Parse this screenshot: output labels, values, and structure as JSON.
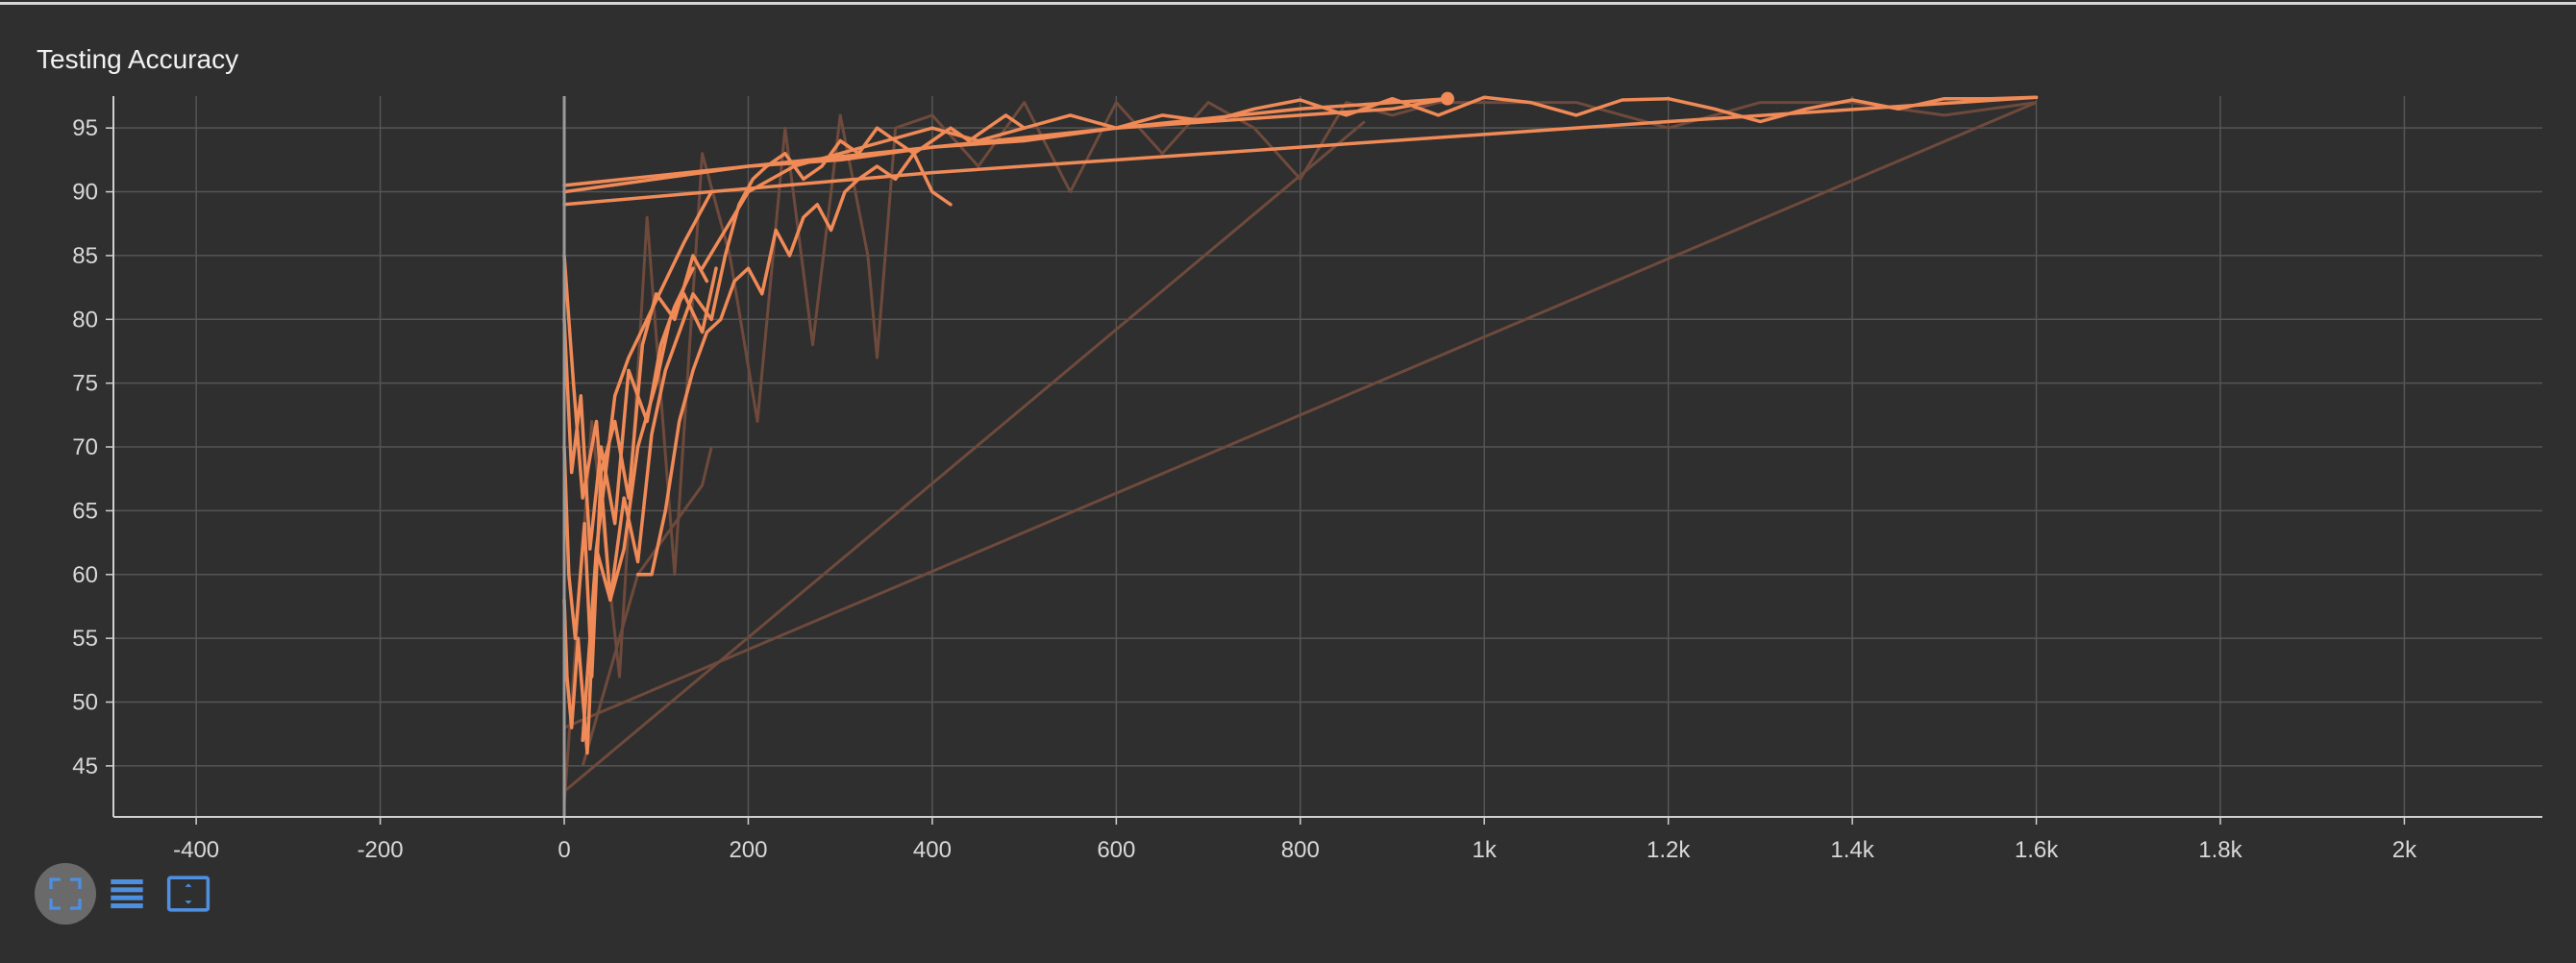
{
  "title": "Testing Accuracy",
  "toolbar": {
    "buttons": [
      {
        "icon": "fullscreen-icon",
        "active": true
      },
      {
        "icon": "toggle-log-list-icon",
        "active": false
      },
      {
        "icon": "fit-domain-icon",
        "active": false
      }
    ]
  },
  "colors": {
    "background": "#2f2f2f",
    "series": "#f08a57",
    "raw_series": "#6e4a3c",
    "grid": "#555555",
    "axis": "#d0d0d0",
    "tick_text": "#d8d8d8",
    "icon": "#4e8fe0"
  },
  "chart_data": {
    "type": "line",
    "title": "Testing Accuracy",
    "xlabel": "",
    "ylabel": "",
    "xlim": [
      -490,
      2150
    ],
    "ylim": [
      41,
      97.5
    ],
    "x_ticks": [
      -400,
      -200,
      0,
      200,
      400,
      600,
      800,
      1000,
      1200,
      1400,
      1600,
      1800,
      2000
    ],
    "x_tick_labels": [
      "-400",
      "-200",
      "0",
      "200",
      "400",
      "600",
      "800",
      "1k",
      "1.2k",
      "1.4k",
      "1.6k",
      "1.8k",
      "2k"
    ],
    "y_ticks": [
      45,
      50,
      55,
      60,
      65,
      70,
      75,
      80,
      85,
      90,
      95
    ],
    "y_tick_labels": [
      "45",
      "50",
      "55",
      "60",
      "65",
      "70",
      "75",
      "80",
      "85",
      "90",
      "95"
    ],
    "grid": true,
    "legend": "none",
    "raw_series": [
      {
        "x": [
          0,
          30,
          60,
          90,
          120,
          150,
          180,
          210,
          240,
          270,
          300,
          330,
          340,
          360,
          400,
          450,
          500,
          550,
          600,
          650,
          700,
          750,
          800,
          850,
          900,
          950,
          1000,
          1100,
          1200,
          1300,
          1400,
          1500,
          1600
        ],
        "y": [
          42,
          72,
          52,
          88,
          60,
          93,
          85,
          72,
          95,
          78,
          96,
          85,
          77,
          95,
          96,
          92,
          97,
          90,
          97,
          93,
          97,
          95,
          91,
          97,
          96,
          97,
          97,
          97,
          95,
          97,
          97,
          96,
          97
        ]
      },
      {
        "x": [
          0,
          870
        ],
        "y": [
          43,
          95.5
        ]
      },
      {
        "x": [
          0,
          1600
        ],
        "y": [
          48,
          97
        ]
      },
      {
        "x": [
          20,
          80,
          150,
          160
        ],
        "y": [
          45,
          60,
          67,
          70
        ]
      }
    ],
    "series": [
      {
        "x": [
          0,
          3,
          8,
          15,
          25,
          35,
          45,
          55,
          70,
          90,
          110,
          130,
          145,
          160
        ],
        "y": [
          58,
          52,
          48,
          55,
          46,
          62,
          68,
          74,
          77,
          80,
          83,
          86,
          88,
          90
        ]
      },
      {
        "x": [
          0,
          5,
          12,
          22,
          30,
          40,
          55,
          70,
          85,
          100,
          120,
          140,
          155
        ],
        "y": [
          70,
          60,
          55,
          64,
          52,
          68,
          72,
          66,
          78,
          82,
          80,
          85,
          83
        ]
      },
      {
        "x": [
          0,
          10,
          20,
          35,
          50,
          65,
          80,
          100,
          115,
          130,
          150,
          165
        ],
        "y": [
          85,
          75,
          66,
          72,
          58,
          62,
          70,
          75,
          80,
          82,
          79,
          84
        ]
      },
      {
        "x": [
          0,
          8,
          18,
          28,
          40,
          55,
          70,
          90,
          105,
          120,
          140
        ],
        "y": [
          80,
          68,
          74,
          62,
          70,
          64,
          76,
          72,
          78,
          81,
          84
        ]
      },
      {
        "x": [
          20,
          35,
          50,
          65,
          80,
          95,
          110,
          125,
          140,
          160,
          175,
          190,
          205,
          220,
          240,
          260,
          280,
          300,
          320,
          340,
          360,
          380,
          400,
          420,
          440,
          460,
          480,
          500
        ],
        "y": [
          47,
          62,
          58,
          66,
          61,
          71,
          76,
          79,
          82,
          80,
          85,
          89,
          91,
          92,
          93,
          91,
          92,
          94,
          93,
          95,
          94,
          93,
          94,
          95,
          94,
          95,
          96,
          95
        ]
      },
      {
        "x": [
          80,
          95,
          110,
          125,
          140,
          155,
          170,
          185,
          200,
          215,
          230,
          245,
          260,
          275,
          290,
          305,
          320,
          340,
          360,
          380,
          400,
          420
        ],
        "y": [
          60,
          60,
          65,
          72,
          76,
          79,
          80,
          83,
          84,
          82,
          87,
          85,
          88,
          89,
          87,
          90,
          91,
          92,
          91,
          93,
          90,
          89
        ]
      },
      {
        "x": [
          0,
          100,
          200,
          300,
          400,
          500,
          600,
          700,
          800,
          900,
          960
        ],
        "y": [
          90,
          91,
          92,
          92.5,
          93.5,
          94,
          95,
          95.5,
          96,
          96.5,
          97.3
        ]
      },
      {
        "x": [
          150,
          200,
          250,
          300,
          350,
          400,
          450,
          500,
          550,
          600,
          650,
          700,
          750,
          800,
          850,
          900,
          950,
          1000,
          1050,
          1100,
          1150,
          1200,
          1250,
          1300,
          1350,
          1400,
          1450,
          1500,
          1550,
          1600
        ],
        "y": [
          84,
          90,
          92,
          93,
          94,
          95,
          94,
          95,
          96,
          95,
          96,
          95.5,
          96.5,
          97.2,
          96,
          97.3,
          96,
          97.4,
          97,
          96,
          97.2,
          97.3,
          96.5,
          95.5,
          96.5,
          97.2,
          96.5,
          97.3,
          97.3,
          97.4
        ]
      },
      {
        "x": [
          0,
          400,
          800,
          1200,
          1600
        ],
        "y": [
          89,
          91.5,
          93.5,
          95.5,
          97.4
        ]
      },
      {
        "x": [
          0,
          200,
          400,
          600,
          800,
          960
        ],
        "y": [
          90.5,
          92,
          93.5,
          95,
          96.5,
          97.3
        ]
      }
    ],
    "end_marker": {
      "x": 960,
      "y": 97.3
    }
  }
}
